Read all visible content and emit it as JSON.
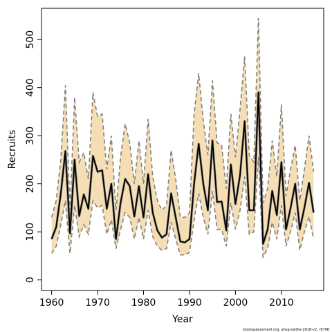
{
  "chart_data": {
    "type": "line",
    "xlabel": "Year",
    "ylabel": "Recruits",
    "xlim": [
      1957.8,
      2019.2
    ],
    "ylim": [
      -22,
      565
    ],
    "x_ticks": [
      1960,
      1970,
      1980,
      1990,
      2000,
      2010
    ],
    "y_ticks": [
      0,
      100,
      200,
      300,
      400,
      500
    ],
    "grid": false,
    "colors": {
      "band": "#f5deb3",
      "median": "#000000",
      "outline": "#808080",
      "axis": "#000000"
    },
    "x": [
      1960,
      1961,
      1962,
      1963,
      1964,
      1965,
      1966,
      1967,
      1968,
      1969,
      1970,
      1971,
      1972,
      1973,
      1974,
      1975,
      1976,
      1977,
      1978,
      1979,
      1980,
      1981,
      1982,
      1983,
      1984,
      1985,
      1986,
      1987,
      1988,
      1989,
      1990,
      1991,
      1992,
      1993,
      1994,
      1995,
      1996,
      1997,
      1998,
      1999,
      2000,
      2001,
      2002,
      2003,
      2004,
      2005,
      2006,
      2007,
      2008,
      2009,
      2010,
      2011,
      2012,
      2013,
      2014,
      2015,
      2016,
      2017
    ],
    "series": [
      {
        "role": "median",
        "values": [
          85,
          110,
          180,
          268,
          97,
          250,
          133,
          178,
          148,
          258,
          225,
          228,
          148,
          200,
          85,
          160,
          210,
          195,
          132,
          195,
          130,
          220,
          140,
          103,
          88,
          95,
          180,
          130,
          80,
          78,
          85,
          200,
          283,
          200,
          145,
          290,
          162,
          163,
          103,
          240,
          158,
          218,
          330,
          145,
          145,
          390,
          75,
          105,
          185,
          135,
          245,
          105,
          150,
          200,
          105,
          150,
          202,
          140
        ]
      },
      {
        "role": "upper",
        "values": [
          130,
          165,
          250,
          405,
          145,
          380,
          245,
          265,
          210,
          390,
          340,
          345,
          230,
          300,
          145,
          255,
          325,
          285,
          200,
          290,
          200,
          335,
          215,
          165,
          145,
          155,
          270,
          210,
          130,
          130,
          140,
          345,
          430,
          330,
          260,
          415,
          285,
          280,
          190,
          345,
          255,
          355,
          465,
          260,
          245,
          545,
          160,
          190,
          290,
          215,
          365,
          175,
          230,
          280,
          165,
          230,
          300,
          225
        ]
      },
      {
        "role": "lower",
        "values": [
          55,
          70,
          115,
          165,
          55,
          155,
          90,
          115,
          95,
          165,
          150,
          155,
          95,
          125,
          65,
          105,
          140,
          130,
          85,
          130,
          85,
          145,
          90,
          70,
          62,
          65,
          120,
          85,
          52,
          52,
          57,
          125,
          180,
          130,
          95,
          185,
          105,
          105,
          70,
          160,
          105,
          145,
          215,
          95,
          100,
          255,
          48,
          65,
          120,
          85,
          155,
          70,
          100,
          140,
          62,
          100,
          132,
          85
        ]
      }
    ],
    "credit": "stockassessment.org, ahsg-salthe-2018-v2, r9796"
  }
}
